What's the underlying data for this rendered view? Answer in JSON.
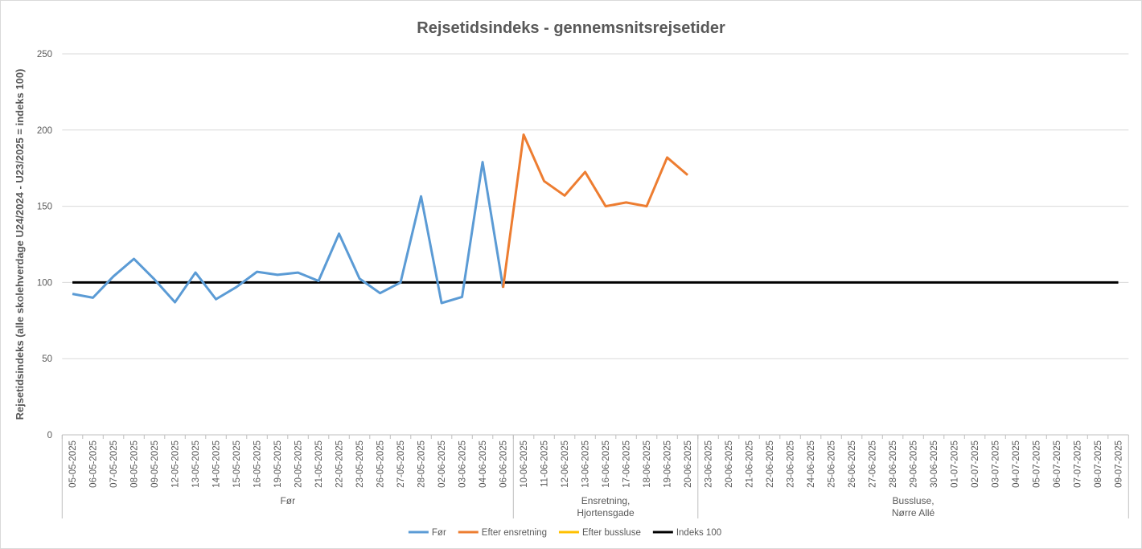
{
  "chart_data": {
    "type": "line",
    "title": "Rejsetidsindeks - gennemsnitsrejsetider",
    "y_label": "Rejsetidsindeks (alle skolehverdage U24/2024 - U23/2025 = indeks 100)",
    "categories": [
      "05-05-2025",
      "06-05-2025",
      "07-05-2025",
      "08-05-2025",
      "09-05-2025",
      "12-05-2025",
      "13-05-2025",
      "14-05-2025",
      "15-05-2025",
      "16-05-2025",
      "19-05-2025",
      "20-05-2025",
      "21-05-2025",
      "22-05-2025",
      "23-05-2025",
      "26-05-2025",
      "27-05-2025",
      "28-05-2025",
      "02-06-2025",
      "03-06-2025",
      "04-06-2025",
      "06-06-2025",
      "10-06-2025",
      "11-06-2025",
      "12-06-2025",
      "13-06-2025",
      "16-06-2025",
      "17-06-2025",
      "18-06-2025",
      "19-06-2025",
      "20-06-2025",
      "23-06-2025",
      "20-06-2025",
      "21-06-2025",
      "22-06-2025",
      "23-06-2025",
      "24-06-2025",
      "25-06-2025",
      "26-06-2025",
      "27-06-2025",
      "28-06-2025",
      "29-06-2025",
      "30-06-2025",
      "01-07-2025",
      "02-07-2025",
      "03-07-2025",
      "04-07-2025",
      "05-07-2025",
      "06-07-2025",
      "07-07-2025",
      "08-07-2025",
      "09-07-2025"
    ],
    "groups": [
      {
        "label": [
          "Før"
        ],
        "count": 22
      },
      {
        "label": [
          "Ensretning,",
          "Hjortensgade"
        ],
        "count": 9
      },
      {
        "label": [
          "Bussluse,",
          "Nørre Allé"
        ],
        "count": 21
      }
    ],
    "series": [
      {
        "name": "Før",
        "color": "#5b9bd5",
        "values": [
          92.5,
          90,
          104,
          115.5,
          102,
          87,
          106.5,
          89,
          97,
          107,
          105,
          106.5,
          101,
          132,
          102.5,
          93,
          100,
          156.5,
          86.5,
          90.5,
          179,
          96.5,
          null,
          null,
          null,
          null,
          null,
          null,
          null,
          null,
          null,
          null,
          null,
          null,
          null,
          null,
          null,
          null,
          null,
          null,
          null,
          null,
          null,
          null,
          null,
          null,
          null,
          null,
          null,
          null,
          null,
          null
        ]
      },
      {
        "name": "Efter ensretning",
        "color": "#ed7d31",
        "values": [
          null,
          null,
          null,
          null,
          null,
          null,
          null,
          null,
          null,
          null,
          null,
          null,
          null,
          null,
          null,
          null,
          null,
          null,
          null,
          null,
          null,
          96.5,
          197,
          166.5,
          157,
          172.5,
          150,
          152.5,
          150,
          182,
          170.5,
          null,
          null,
          null,
          null,
          null,
          null,
          null,
          null,
          null,
          null,
          null,
          null,
          null,
          null,
          null,
          null,
          null,
          null,
          null,
          null,
          null
        ]
      },
      {
        "name": "Efter bussluse",
        "color": "#ffc000",
        "values": [
          null,
          null,
          null,
          null,
          null,
          null,
          null,
          null,
          null,
          null,
          null,
          null,
          null,
          null,
          null,
          null,
          null,
          null,
          null,
          null,
          null,
          null,
          null,
          null,
          null,
          null,
          null,
          null,
          null,
          null,
          null,
          null,
          null,
          null,
          null,
          null,
          null,
          null,
          null,
          null,
          null,
          null,
          null,
          null,
          null,
          null,
          null,
          null,
          null,
          null,
          null,
          null
        ]
      },
      {
        "name": "Indeks 100",
        "color": "#000000",
        "values": [
          100,
          100,
          100,
          100,
          100,
          100,
          100,
          100,
          100,
          100,
          100,
          100,
          100,
          100,
          100,
          100,
          100,
          100,
          100,
          100,
          100,
          100,
          100,
          100,
          100,
          100,
          100,
          100,
          100,
          100,
          100,
          100,
          100,
          100,
          100,
          100,
          100,
          100,
          100,
          100,
          100,
          100,
          100,
          100,
          100,
          100,
          100,
          100,
          100,
          100,
          100,
          100
        ]
      }
    ],
    "ylim": [
      0,
      250
    ],
    "yticks": [
      0,
      50,
      100,
      150,
      200,
      250
    ],
    "grid": true,
    "legend": "bottom"
  }
}
